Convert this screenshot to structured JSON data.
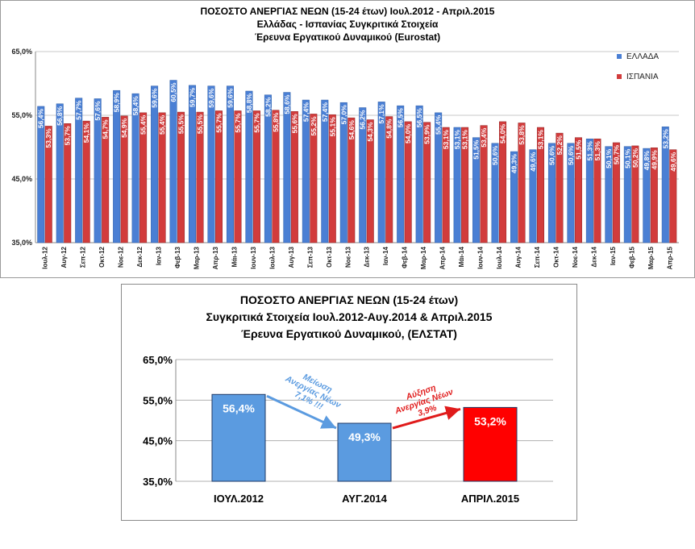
{
  "chart_data": [
    {
      "type": "bar",
      "title_lines": [
        "ΠΟΣΟΣΤΟ ΑΝΕΡΓΙΑΣ ΝΕΩΝ (15-24 έτων) Ιουλ.2012 - Απριλ.2015",
        "Ελλάδας - Ισπανίας Συγκριτικά Στοιχεία",
        "Έρευνα Εργατικού Δυναμικού (Eurostat)"
      ],
      "categories": [
        "Ιουλ-12",
        "Αυγ-12",
        "Σεπ-12",
        "Οκτ-12",
        "Νοε-12",
        "Δεκ-12",
        "Ιαν-13",
        "Φεβ-13",
        "Μαρ-13",
        "Απρ-13",
        "Μάι-13",
        "Ιουν-13",
        "Ιουλ-13",
        "Αυγ-13",
        "Σεπ-13",
        "Οκτ-13",
        "Νοε-13",
        "Δεκ-13",
        "Ιαν-14",
        "Φεβ-14",
        "Μαρ-14",
        "Απρ-14",
        "Μάι-14",
        "Ιουν-14",
        "Ιουλ-14",
        "Αυγ-14",
        "Σεπ-14",
        "Οκτ-14",
        "Νοε-14",
        "Δεκ-14",
        "Ιαν-15",
        "Φεβ-15",
        "Μαρ-15",
        "Απρ-15"
      ],
      "series": [
        {
          "name": "ΕΛΛΑΔΑ",
          "color": "#4a7fd4",
          "values": [
            56.4,
            56.8,
            57.7,
            57.6,
            58.9,
            58.4,
            59.6,
            60.5,
            59.7,
            59.6,
            59.6,
            58.8,
            58.2,
            58.6,
            57.4,
            57.4,
            57.0,
            56.2,
            57.1,
            56.5,
            56.5,
            55.4,
            53.1,
            51.5,
            50.6,
            49.3,
            49.6,
            50.6,
            50.6,
            51.3,
            50.1,
            50.1,
            49.8,
            53.2
          ]
        },
        {
          "name": "ΙΣΠΑΝΙΑ",
          "color": "#d23c3c",
          "values": [
            53.3,
            53.7,
            54.1,
            54.7,
            54.9,
            55.4,
            55.4,
            55.5,
            55.5,
            55.7,
            55.7,
            55.7,
            55.8,
            55.6,
            55.2,
            55.1,
            54.6,
            54.3,
            54.8,
            54.0,
            53.9,
            53.1,
            53.1,
            53.4,
            54.0,
            53.8,
            53.1,
            52.2,
            51.5,
            51.3,
            50.7,
            50.2,
            49.9,
            49.6
          ]
        }
      ],
      "value_labels": {
        "ΕΛΛΑΔΑ": [
          "56,4%",
          "56,8%",
          "57,7%",
          "57,6%",
          "58,9%",
          "58,4%",
          "59,6%",
          "60,5%",
          "59,7%",
          "59,6%",
          "59,6%",
          "58,8%",
          "58,2%",
          "58,6%",
          "57,4%",
          "57,4%",
          "57,0%",
          "56,2%",
          "57,1%",
          "56,5%",
          "56,5%",
          "55,4%",
          "53,1%",
          "51,5%",
          "50,6%",
          "49,3%",
          "49,6%",
          "50,6%",
          "50,6%",
          "51,3%",
          "50,1%",
          "50,1%",
          "49,8%",
          "53,2%"
        ],
        "ΙΣΠΑΝΙΑ": [
          "53,3%",
          "53,7%",
          "54,1%",
          "54,7%",
          "54,9%",
          "55,4%",
          "55,4%",
          "55,5%",
          "55,5%",
          "55,7%",
          "55,7%",
          "55,7%",
          "55,8%",
          "55,6%",
          "55,2%",
          "55,1%",
          "54,6%",
          "54,3%",
          "54,8%",
          "54,0%",
          "53,9%",
          "53,1%",
          "53,1%",
          "53,4%",
          "54,0%",
          "53,8%",
          "53,1%",
          "52,2%",
          "51,5%",
          "51,3%",
          "50,7%",
          "50,2%",
          "49,9%",
          "49,6%"
        ]
      },
      "ylim": [
        35,
        65
      ],
      "yticks": [
        "35,0%",
        "45,0%",
        "55,0%",
        "65,0%"
      ],
      "legend_position": "top-right"
    },
    {
      "type": "bar",
      "title_lines": [
        "ΠΟΣΟΣΤΟ ΑΝΕΡΓΙΑΣ ΝΕΩΝ (15-24 έτων)",
        "Συγκριτικά Στοιχεία Ιουλ.2012-Αυγ.2014 & Απριλ.2015",
        "Έρευνα Εργατικού Δυναμικού, (ΕΛΣΤΑΤ)"
      ],
      "categories": [
        "ΙΟΥΛ.2012",
        "ΑΥΓ.2014",
        "ΑΠΡΙΛ.2015"
      ],
      "values": [
        56.4,
        49.3,
        53.2
      ],
      "value_labels": [
        "56,4%",
        "49,3%",
        "53,2%"
      ],
      "colors": [
        "#5b9be0",
        "#5b9be0",
        "#ff0000"
      ],
      "ylim": [
        35,
        65
      ],
      "yticks": [
        "35,0%",
        "45,0%",
        "55,0%",
        "65,0%"
      ],
      "annotations": [
        {
          "lines": [
            "Μείωση",
            "Ανεργίας Νέων",
            "7,1% !!!"
          ],
          "color": "#5b9be0"
        },
        {
          "lines": [
            "Αύξηση",
            "Ανεργίας Νέων",
            "3,9%"
          ],
          "color": "#e01b1b"
        }
      ]
    }
  ]
}
